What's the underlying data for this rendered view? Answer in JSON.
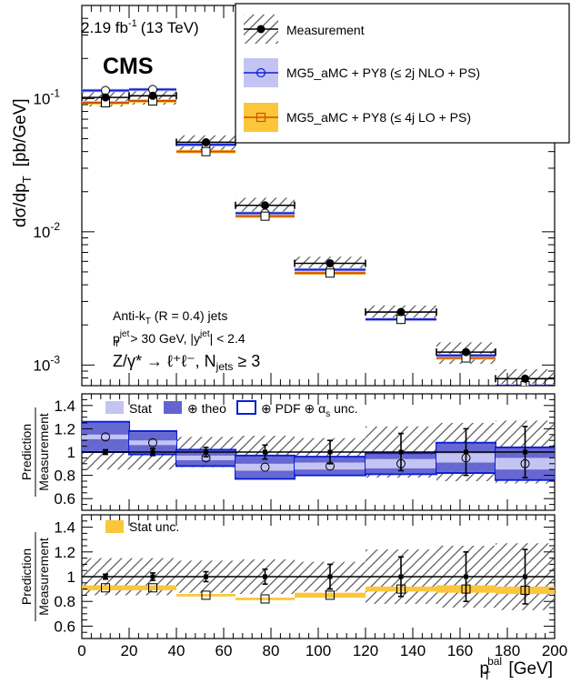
{
  "header": {
    "lumi": "2.19 fb",
    "lumi_sup": "-1",
    "energy": "(13 TeV)",
    "experiment": "CMS"
  },
  "colors": {
    "measurement": "#000000",
    "nlo": "#0b1fd6",
    "nlo_band": "#c4c4f4",
    "nlo_theo": "#6464d0",
    "lo": "#d44f00",
    "lo_band": "#fbc63a",
    "hatch": "#555555"
  },
  "legend": {
    "measurement": "Measurement",
    "nlo": "MG5_aMC + PY8 (≤ 2j NLO + PS)",
    "lo": "MG5_aMC + PY8 (≤ 4j LO + PS)"
  },
  "annotation": {
    "line1": "Anti-k",
    "line1_sub": "T",
    "line1_rest": " (R = 0.4) jets",
    "line2": "p",
    "line2_sup": "jet",
    "line2_sub": "T",
    "line2_rest": " > 30 GeV, |y",
    "line2_sup2": "jet",
    "line2_end": "| < 2.4",
    "line3": "Z/γ* → ℓ⁺ℓ⁻, N",
    "line3_sub": "jets",
    "line3_end": " ≥ 3"
  },
  "panel2_legend": {
    "stat": "Stat",
    "theo": "⊕ theo",
    "pdf": "⊕ PDF ⊕ α",
    "pdf_sub": "s",
    "pdf_end": " unc."
  },
  "panel3_legend": {
    "stat": "Stat unc."
  },
  "chart_data": [
    {
      "type": "line",
      "scale": "log",
      "ylabel": "dσ/dp",
      "ylabel_sub": "T",
      "ylabel_units": "[pb/GeV]",
      "ylim": [
        0.0007,
        0.5
      ],
      "yticks": [
        {
          "v": 0.001,
          "base": "10",
          "exp": "-3"
        },
        {
          "v": 0.01,
          "base": "10",
          "exp": "-2"
        },
        {
          "v": 0.1,
          "base": "10",
          "exp": "-1"
        }
      ],
      "bins": [
        [
          0,
          20
        ],
        [
          20,
          40
        ],
        [
          40,
          65
        ],
        [
          65,
          90
        ],
        [
          90,
          120
        ],
        [
          120,
          150
        ],
        [
          150,
          175
        ],
        [
          175,
          200
        ]
      ],
      "series": [
        {
          "name": "Measurement",
          "values": [
            0.102,
            0.105,
            0.047,
            0.0158,
            0.0058,
            0.0025,
            0.00125,
            0.00079
          ],
          "errors": [
            0.015,
            0.015,
            0.006,
            0.0022,
            0.0007,
            0.0003,
            0.00023,
            0.00014
          ]
        },
        {
          "name": "MG5_aMC + PY8 (≤ 2j NLO + PS)",
          "values": [
            0.115,
            0.117,
            0.045,
            0.0138,
            0.0052,
            0.0022,
            0.00118,
            0.0007
          ]
        },
        {
          "name": "MG5_aMC + PY8 (≤ 4j LO + PS)",
          "values": [
            0.093,
            0.096,
            0.04,
            0.0131,
            0.0049,
            0.0022,
            0.00113,
            0.0007
          ]
        }
      ]
    },
    {
      "type": "line",
      "ylabel_top": "Prediction",
      "ylabel_bottom": "Measurement",
      "ylim": [
        0.5,
        1.5
      ],
      "yticks": [
        "0.6",
        "0.8",
        "1",
        "1.2",
        "1.4"
      ],
      "bins": [
        [
          0,
          20
        ],
        [
          20,
          40
        ],
        [
          40,
          65
        ],
        [
          65,
          90
        ],
        [
          90,
          120
        ],
        [
          120,
          150
        ],
        [
          150,
          175
        ],
        [
          175,
          200
        ]
      ],
      "ratio": [
        1.13,
        1.08,
        0.95,
        0.87,
        0.88,
        0.9,
        0.95,
        0.9
      ],
      "stat_err": [
        0.02,
        0.02,
        0.02,
        0.03,
        0.03,
        0.04,
        0.04,
        0.05
      ],
      "theo_err": [
        0.12,
        0.09,
        0.06,
        0.09,
        0.07,
        0.08,
        0.12,
        0.13
      ],
      "total_err": [
        0.13,
        0.1,
        0.07,
        0.1,
        0.08,
        0.09,
        0.13,
        0.14
      ],
      "meas_err": [
        0.02,
        0.03,
        0.04,
        0.06,
        0.1,
        0.16,
        0.2,
        0.22
      ],
      "sys_err": [
        0.15,
        0.15,
        0.13,
        0.14,
        0.12,
        0.22,
        0.25,
        0.27
      ]
    },
    {
      "type": "line",
      "ylabel_top": "Prediction",
      "ylabel_bottom": "Measurement",
      "ylim": [
        0.5,
        1.5
      ],
      "yticks": [
        "0.6",
        "0.8",
        "1",
        "1.2",
        "1.4"
      ],
      "xlabel": "p",
      "xlabel_sub": "T",
      "xlabel_sup": "bal",
      "xlabel_units": "[GeV]",
      "xticks": [
        "0",
        "20",
        "40",
        "60",
        "80",
        "100",
        "120",
        "140",
        "160",
        "180",
        "200"
      ],
      "bins": [
        [
          0,
          20
        ],
        [
          20,
          40
        ],
        [
          40,
          65
        ],
        [
          65,
          90
        ],
        [
          90,
          120
        ],
        [
          120,
          150
        ],
        [
          150,
          175
        ],
        [
          175,
          200
        ]
      ],
      "ratio": [
        0.91,
        0.91,
        0.85,
        0.82,
        0.85,
        0.9,
        0.9,
        0.89
      ],
      "stat_err": [
        0.02,
        0.02,
        0.01,
        0.01,
        0.02,
        0.02,
        0.03,
        0.03
      ],
      "meas_err": [
        0.02,
        0.03,
        0.04,
        0.06,
        0.1,
        0.16,
        0.2,
        0.22
      ],
      "sys_err": [
        0.15,
        0.15,
        0.13,
        0.14,
        0.12,
        0.22,
        0.25,
        0.27
      ]
    }
  ]
}
